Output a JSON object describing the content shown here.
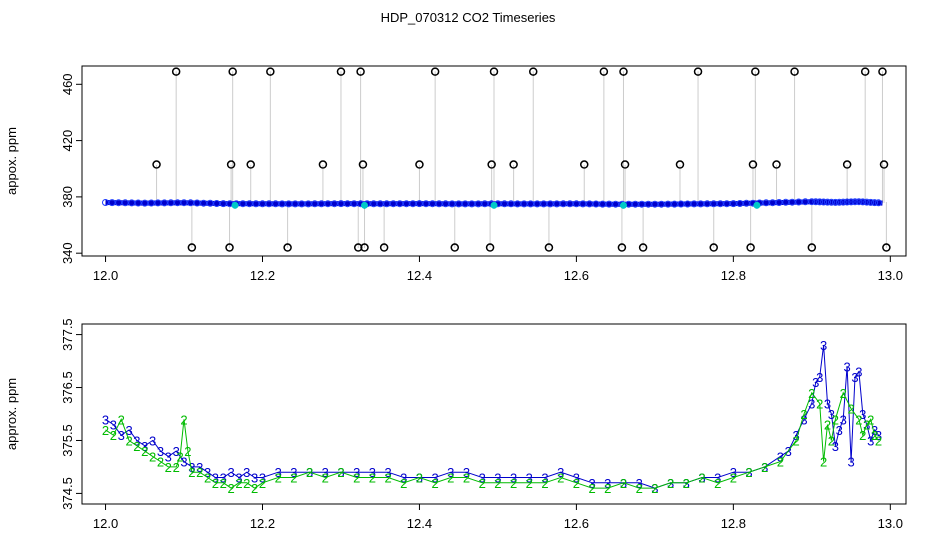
{
  "figure": {
    "title": "HDP_070312  CO2 Timeseries"
  },
  "colors": {
    "spike_markers": "#000000",
    "spike_lines": "#9a9a9a",
    "series_1": "#0000cc",
    "series_1_markers": "#1e3cff",
    "series_2": "#00bb00",
    "series_3": "#0000cc",
    "cyan_markers": "#00c8c8"
  },
  "chart_data": [
    {
      "type": "scatter",
      "title": "",
      "xlabel": "",
      "ylabel": "appox. ppm",
      "xlim": [
        11.97,
        13.02
      ],
      "ylim": [
        338,
        473
      ],
      "xticks": [
        "12.0",
        "12.2",
        "12.4",
        "12.6",
        "12.8",
        "13.0"
      ],
      "xtick_values": [
        12.0,
        12.2,
        12.4,
        12.6,
        12.8,
        13.0
      ],
      "yticks": [
        "340",
        "380",
        "420",
        "460"
      ],
      "ytick_values": [
        340,
        380,
        420,
        460
      ],
      "grid": false,
      "legend": "none",
      "baseline": {
        "x": [
          12.0,
          12.05,
          12.1,
          12.15,
          12.2,
          12.25,
          12.3,
          12.35,
          12.4,
          12.45,
          12.5,
          12.55,
          12.6,
          12.65,
          12.7,
          12.75,
          12.8,
          12.85,
          12.9,
          12.93,
          12.96,
          12.99
        ],
        "y": [
          376,
          375.6,
          375.9,
          375.2,
          375.1,
          375.0,
          375.2,
          375.1,
          375.2,
          375.0,
          375.1,
          375.0,
          375.1,
          374.8,
          374.8,
          375.0,
          375.2,
          375.9,
          376.6,
          376.1,
          376.6,
          375.6
        ]
      },
      "spikes": {
        "x": [
          12.065,
          12.09,
          12.11,
          12.158,
          12.16,
          12.162,
          12.185,
          12.21,
          12.232,
          12.277,
          12.3,
          12.322,
          12.325,
          12.328,
          12.33,
          12.355,
          12.4,
          12.42,
          12.445,
          12.49,
          12.492,
          12.495,
          12.52,
          12.545,
          12.565,
          12.61,
          12.635,
          12.658,
          12.66,
          12.662,
          12.685,
          12.732,
          12.755,
          12.775,
          12.822,
          12.825,
          12.828,
          12.855,
          12.878,
          12.9,
          12.945,
          12.968,
          12.99,
          12.992,
          12.995
        ],
        "y": [
          403,
          469,
          344,
          344,
          403,
          469,
          403,
          469,
          344,
          403,
          469,
          344,
          469,
          403,
          344,
          344,
          403,
          469,
          344,
          344,
          403,
          469,
          403,
          469,
          344,
          403,
          469,
          344,
          469,
          403,
          344,
          403,
          469,
          344,
          344,
          403,
          469,
          403,
          469,
          344,
          403,
          469,
          469,
          403,
          344
        ]
      },
      "cyan_points": {
        "x": [
          12.165,
          12.33,
          12.495,
          12.66,
          12.83
        ],
        "y": [
          374,
          374,
          374,
          374,
          374
        ]
      }
    },
    {
      "type": "line",
      "title": "",
      "xlabel": "",
      "ylabel": "approx. ppm",
      "xlim": [
        11.97,
        13.02
      ],
      "ylim": [
        374.3,
        377.7
      ],
      "xticks": [
        "12.0",
        "12.2",
        "12.4",
        "12.6",
        "12.8",
        "13.0"
      ],
      "xtick_values": [
        12.0,
        12.2,
        12.4,
        12.6,
        12.8,
        13.0
      ],
      "yticks": [
        "374.5",
        "375.5",
        "376.5",
        "377.5"
      ],
      "ytick_values": [
        374.5,
        375.5,
        376.5,
        377.5
      ],
      "grid": false,
      "legend": "none",
      "series": [
        {
          "marker": "3",
          "x": [
            12.0,
            12.01,
            12.02,
            12.03,
            12.04,
            12.05,
            12.06,
            12.07,
            12.08,
            12.09,
            12.1,
            12.11,
            12.12,
            12.13,
            12.14,
            12.15,
            12.16,
            12.17,
            12.18,
            12.19,
            12.2,
            12.22,
            12.24,
            12.26,
            12.28,
            12.3,
            12.32,
            12.34,
            12.36,
            12.38,
            12.4,
            12.42,
            12.44,
            12.46,
            12.48,
            12.5,
            12.52,
            12.54,
            12.56,
            12.58,
            12.6,
            12.62,
            12.64,
            12.66,
            12.68,
            12.7,
            12.72,
            12.74,
            12.76,
            12.78,
            12.8,
            12.82,
            12.84,
            12.86,
            12.87,
            12.88,
            12.89,
            12.9,
            12.905,
            12.91,
            12.915,
            12.92,
            12.925,
            12.93,
            12.935,
            12.94,
            12.945,
            12.95,
            12.955,
            12.96,
            12.965,
            12.97,
            12.975,
            12.98,
            12.985
          ],
          "values": [
            375.9,
            375.8,
            375.6,
            375.7,
            375.5,
            375.4,
            375.5,
            375.3,
            375.2,
            375.3,
            375.1,
            375.0,
            375.0,
            374.9,
            374.8,
            374.8,
            374.9,
            374.8,
            374.9,
            374.8,
            374.8,
            374.9,
            374.9,
            374.9,
            374.9,
            374.9,
            374.9,
            374.9,
            374.9,
            374.8,
            374.8,
            374.8,
            374.9,
            374.9,
            374.8,
            374.8,
            374.8,
            374.8,
            374.8,
            374.9,
            374.8,
            374.7,
            374.7,
            374.7,
            374.7,
            374.6,
            374.7,
            374.7,
            374.8,
            374.8,
            374.9,
            374.9,
            375.0,
            375.2,
            375.3,
            375.6,
            375.9,
            376.2,
            376.6,
            376.7,
            377.3,
            376.2,
            376.0,
            375.4,
            375.7,
            375.9,
            376.9,
            375.1,
            376.7,
            376.8,
            376.0,
            375.8,
            375.5,
            375.7,
            375.6
          ]
        },
        {
          "marker": "2",
          "x": [
            12.0,
            12.01,
            12.02,
            12.03,
            12.04,
            12.05,
            12.06,
            12.07,
            12.08,
            12.09,
            12.095,
            12.1,
            12.105,
            12.11,
            12.12,
            12.13,
            12.14,
            12.15,
            12.16,
            12.17,
            12.18,
            12.19,
            12.2,
            12.22,
            12.24,
            12.26,
            12.28,
            12.3,
            12.32,
            12.34,
            12.36,
            12.38,
            12.4,
            12.42,
            12.44,
            12.46,
            12.48,
            12.5,
            12.52,
            12.54,
            12.56,
            12.58,
            12.6,
            12.62,
            12.64,
            12.66,
            12.68,
            12.7,
            12.72,
            12.74,
            12.76,
            12.78,
            12.8,
            12.82,
            12.84,
            12.86,
            12.88,
            12.89,
            12.9,
            12.91,
            12.915,
            12.92,
            12.925,
            12.93,
            12.94,
            12.95,
            12.96,
            12.965,
            12.97,
            12.975,
            12.98,
            12.985
          ],
          "values": [
            375.7,
            375.6,
            375.9,
            375.5,
            375.4,
            375.3,
            375.2,
            375.1,
            375.0,
            375.0,
            375.2,
            375.9,
            375.3,
            374.9,
            374.9,
            374.8,
            374.7,
            374.7,
            374.6,
            374.7,
            374.7,
            374.6,
            374.7,
            374.8,
            374.8,
            374.9,
            374.8,
            374.9,
            374.8,
            374.8,
            374.8,
            374.7,
            374.8,
            374.7,
            374.8,
            374.8,
            374.7,
            374.7,
            374.7,
            374.7,
            374.7,
            374.8,
            374.7,
            374.6,
            374.6,
            374.7,
            374.6,
            374.6,
            374.7,
            374.7,
            374.8,
            374.7,
            374.8,
            374.9,
            375.0,
            375.1,
            375.5,
            376.0,
            376.4,
            376.2,
            375.1,
            375.8,
            375.5,
            375.9,
            376.4,
            376.1,
            375.9,
            375.6,
            375.8,
            375.9,
            375.6,
            375.5
          ]
        }
      ]
    }
  ]
}
